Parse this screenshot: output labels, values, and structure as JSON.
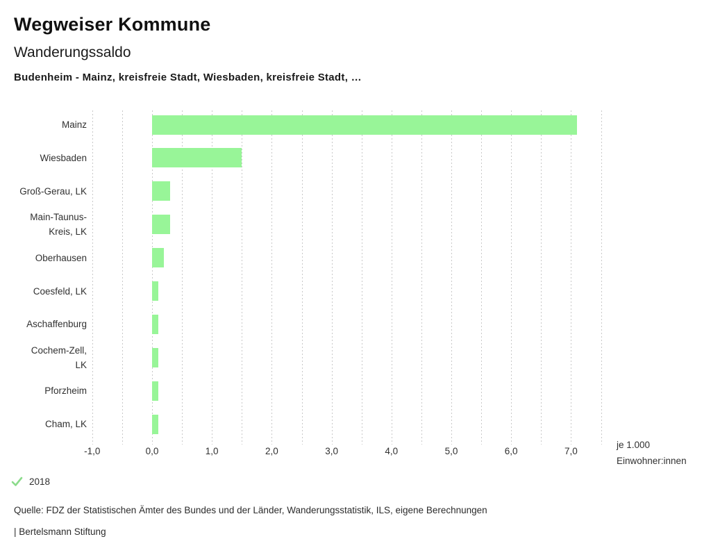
{
  "header": {
    "title": "Wegweiser Kommune",
    "subtitle": "Wanderungssaldo",
    "selection": "Budenheim - Mainz, kreisfreie Stadt, Wiesbaden, kreisfreie Stadt, …"
  },
  "chart_data": {
    "type": "bar",
    "orientation": "horizontal",
    "title": "Wanderungssaldo",
    "categories": [
      "Mainz",
      "Wiesbaden",
      "Groß-Gerau, LK",
      "Main-Taunus-Kreis, LK",
      "Oberhausen",
      "Coesfeld, LK",
      "Aschaffenburg",
      "Cochem-Zell, LK",
      "Pforzheim",
      "Cham, LK"
    ],
    "labels_display": [
      "Mainz",
      "Wiesbaden",
      "Groß-Gerau, LK",
      "Main-Taunus-\nKreis, LK",
      "Oberhausen",
      "Coesfeld, LK",
      "Aschaffenburg",
      "Cochem-Zell,\nLK",
      "Pforzheim",
      "Cham, LK"
    ],
    "values": [
      7.1,
      1.5,
      0.3,
      0.3,
      0.2,
      0.1,
      0.1,
      0.1,
      0.1,
      0.1
    ],
    "xlim": [
      -1.0,
      7.5
    ],
    "gridline_step": 0.5,
    "x_tick_values": [
      -1,
      0,
      1,
      2,
      3,
      4,
      5,
      6,
      7
    ],
    "x_tick_labels": [
      "-1,0",
      "0,0",
      "1,0",
      "2,0",
      "3,0",
      "4,0",
      "5,0",
      "6,0",
      "7,0"
    ],
    "unit_label": "je 1.000\nEinwohner:innen",
    "bar_color": "#98f598",
    "gridline_color": "#c8c8c8",
    "legend": [
      {
        "label": "2018",
        "marker": "check",
        "color": "#8bdb8b"
      }
    ],
    "grid": "vertical-dotted",
    "legend_position": "bottom-left"
  },
  "footer": {
    "source": "Quelle: FDZ der Statistischen Ämter des Bundes und der Länder, Wanderungsstatistik, ILS, eigene Berechnungen",
    "branding": "| Bertelsmann Stiftung"
  }
}
